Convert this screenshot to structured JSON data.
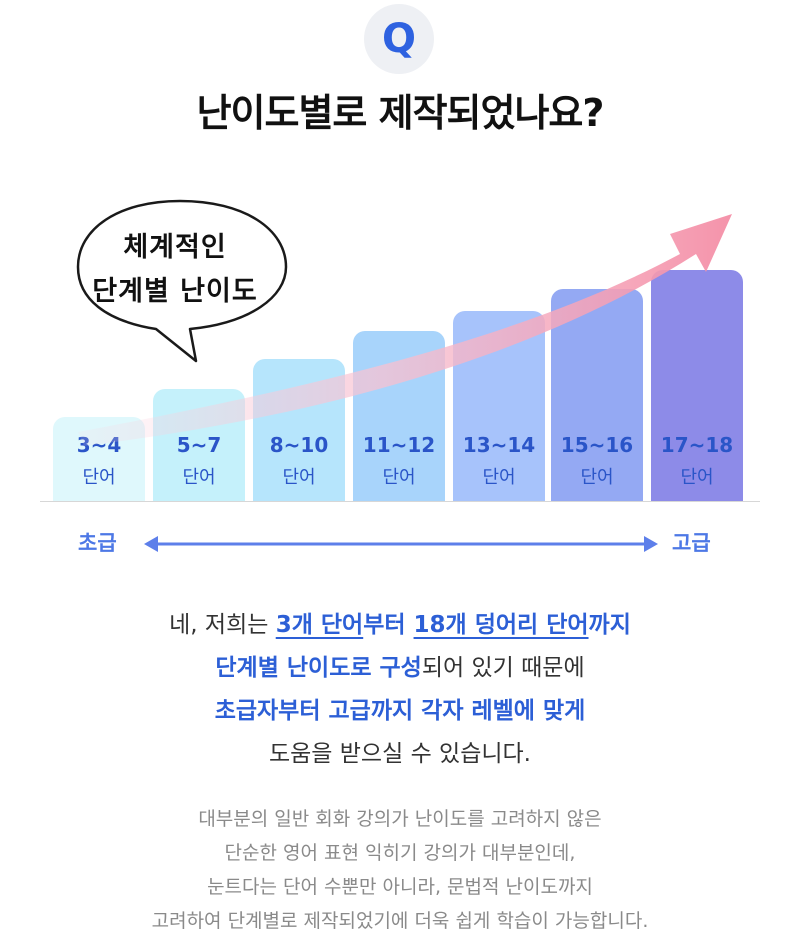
{
  "badge": {
    "letter": "Q"
  },
  "headline": "난이도별로 제작되었나요?",
  "bubble": {
    "line1": "체계적인",
    "line2": "단계별 난이도"
  },
  "bars": [
    {
      "range": "3~4",
      "unit": "단어",
      "color": "#dff8fc",
      "text_color": "#2a55c8"
    },
    {
      "range": "5~7",
      "unit": "단어",
      "color": "#c5f1fb",
      "text_color": "#2a55c8"
    },
    {
      "range": "8~10",
      "unit": "단어",
      "color": "#b6e5fc",
      "text_color": "#2a55c8"
    },
    {
      "range": "11~12",
      "unit": "단어",
      "color": "#a8d4fb",
      "text_color": "#2a55c8"
    },
    {
      "range": "13~14",
      "unit": "단어",
      "color": "#a7c3fb",
      "text_color": "#2a55c8"
    },
    {
      "range": "15~16",
      "unit": "단어",
      "color": "#94a9f3",
      "text_color": "#2a55c8"
    },
    {
      "range": "17~18",
      "unit": "단어",
      "color": "#8d8be8",
      "text_color": "#2a55c8"
    }
  ],
  "levels": {
    "low": "초급",
    "high": "고급"
  },
  "body1": {
    "l1": {
      "a": "네, 저희는 ",
      "b": "3개 단어",
      "c": "부터 ",
      "d": "18개 덩어리 단어",
      "e": "까지"
    },
    "l2": {
      "a": "단계별 난이도로 구성",
      "b": "되어 있기 때문에"
    },
    "l3": "초급자부터 고급까지 각자 레벨에 맞게",
    "l4": "도움을 받으실 수 있습니다."
  },
  "body2": {
    "l1": "대부분의 일반 회화 강의가 난이도를 고려하지 않은",
    "l2": "단순한 영어 표현 익히기 강의가 대부분인데,",
    "l3": "눈트다는 단어 수뿐만 아니라, 문법적 난이도까지",
    "l4": "고려하여 단계별로 제작되었기에 더욱 쉽게 학습이 가능합니다."
  }
}
